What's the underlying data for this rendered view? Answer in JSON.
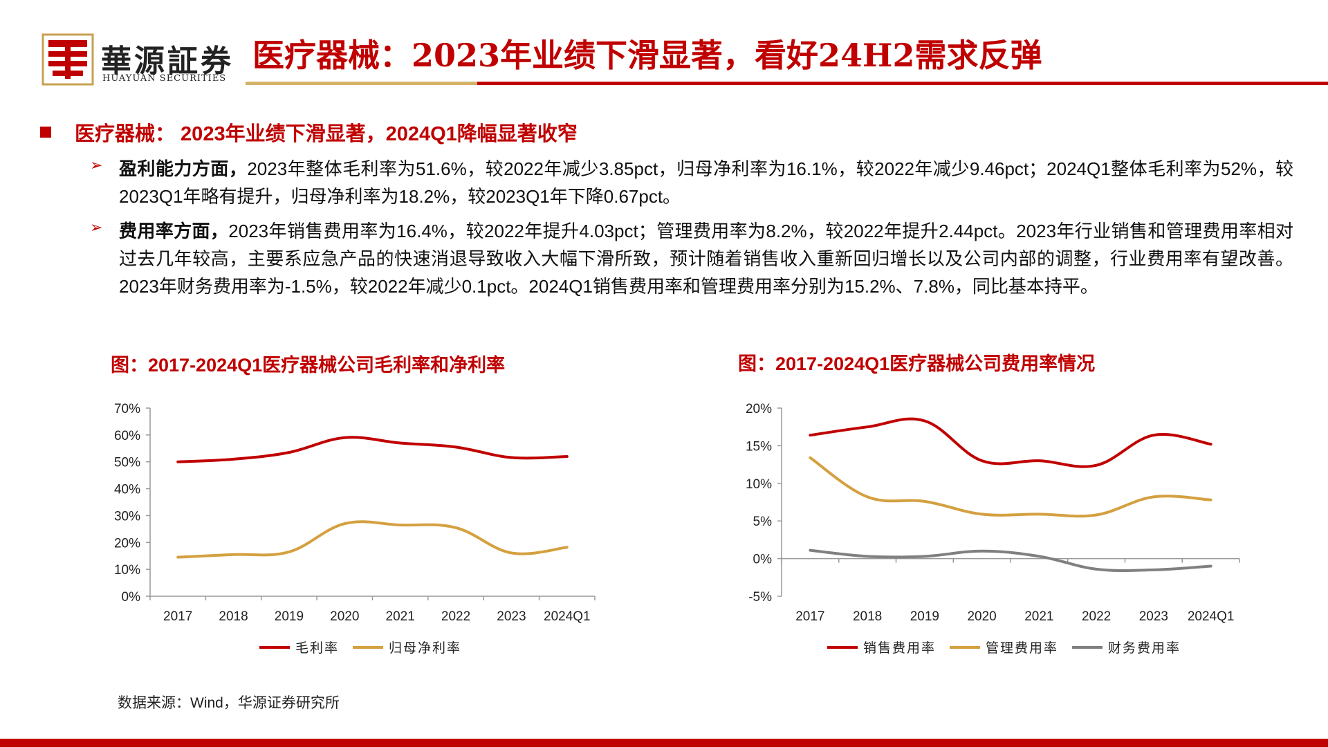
{
  "header": {
    "logo_cn": "華源証券",
    "logo_en": "HUAYUAN SECURITIES",
    "title": "医疗器械：2023年业绩下滑显著，看好24H2需求反弹"
  },
  "section": {
    "heading": "医疗器械： 2023年业绩下滑显著，2024Q1降幅显著收窄"
  },
  "bullets": [
    {
      "bold": "盈利能力方面，",
      "text": "2023年整体毛利率为51.6%，较2022年减少3.85pct，归母净利率为16.1%，较2022年减少9.46pct；2024Q1整体毛利率为52%，较2023Q1年略有提升，归母净利率为18.2%，较2023Q1年下降0.67pct。"
    },
    {
      "bold": "费用率方面，",
      "text": "2023年销售费用率为16.4%，较2022年提升4.03pct；管理费用率为8.2%，较2022年提升2.44pct。2023年行业销售和管理费用率相对过去几年较高，主要系应急产品的快速消退导致收入大幅下滑所致，预计随着销售收入重新回归增长以及公司内部的调整，行业费用率有望改善。2023年财务费用率为-1.5%，较2022年减少0.1pct。2024Q1销售费用率和管理费用率分别为15.2%、7.8%，同比基本持平。"
    }
  ],
  "colors": {
    "accent_red": "#c00000",
    "gold": "#d4a040",
    "gray": "#808080"
  },
  "chart_data": [
    {
      "type": "line",
      "title": "图：2017-2024Q1医疗器械公司毛利率和净利率",
      "categories": [
        "2017",
        "2018",
        "2019",
        "2020",
        "2021",
        "2022",
        "2023",
        "2024Q1"
      ],
      "yticks": [
        "0%",
        "10%",
        "20%",
        "30%",
        "40%",
        "50%",
        "60%",
        "70%"
      ],
      "ylim": [
        0,
        70
      ],
      "grid": false,
      "legend_position": "bottom",
      "series": [
        {
          "name": "毛利率",
          "color": "#c00000",
          "values": [
            50.0,
            51.0,
            53.5,
            59.0,
            57.0,
            55.5,
            51.6,
            52.0
          ]
        },
        {
          "name": "归母净利率",
          "color": "#d4a040",
          "values": [
            14.5,
            15.5,
            16.5,
            27.0,
            26.5,
            25.5,
            16.1,
            18.2
          ]
        }
      ]
    },
    {
      "type": "line",
      "title": "图：2017-2024Q1医疗器械公司费用率情况",
      "categories": [
        "2017",
        "2018",
        "2019",
        "2020",
        "2021",
        "2022",
        "2023",
        "2024Q1"
      ],
      "yticks": [
        "-5%",
        "0%",
        "5%",
        "10%",
        "15%",
        "20%"
      ],
      "ylim": [
        -5,
        20
      ],
      "grid": false,
      "legend_position": "bottom",
      "series": [
        {
          "name": "销售费用率",
          "color": "#c00000",
          "values": [
            16.4,
            17.5,
            18.3,
            13.0,
            13.0,
            12.4,
            16.4,
            15.2
          ]
        },
        {
          "name": "管理费用率",
          "color": "#d4a040",
          "values": [
            13.4,
            8.2,
            7.6,
            5.9,
            5.9,
            5.8,
            8.2,
            7.8
          ]
        },
        {
          "name": "财务费用率",
          "color": "#808080",
          "values": [
            1.1,
            0.3,
            0.3,
            1.0,
            0.3,
            -1.4,
            -1.5,
            -1.0
          ]
        }
      ]
    }
  ],
  "source": "数据来源：Wind，华源证券研究所"
}
